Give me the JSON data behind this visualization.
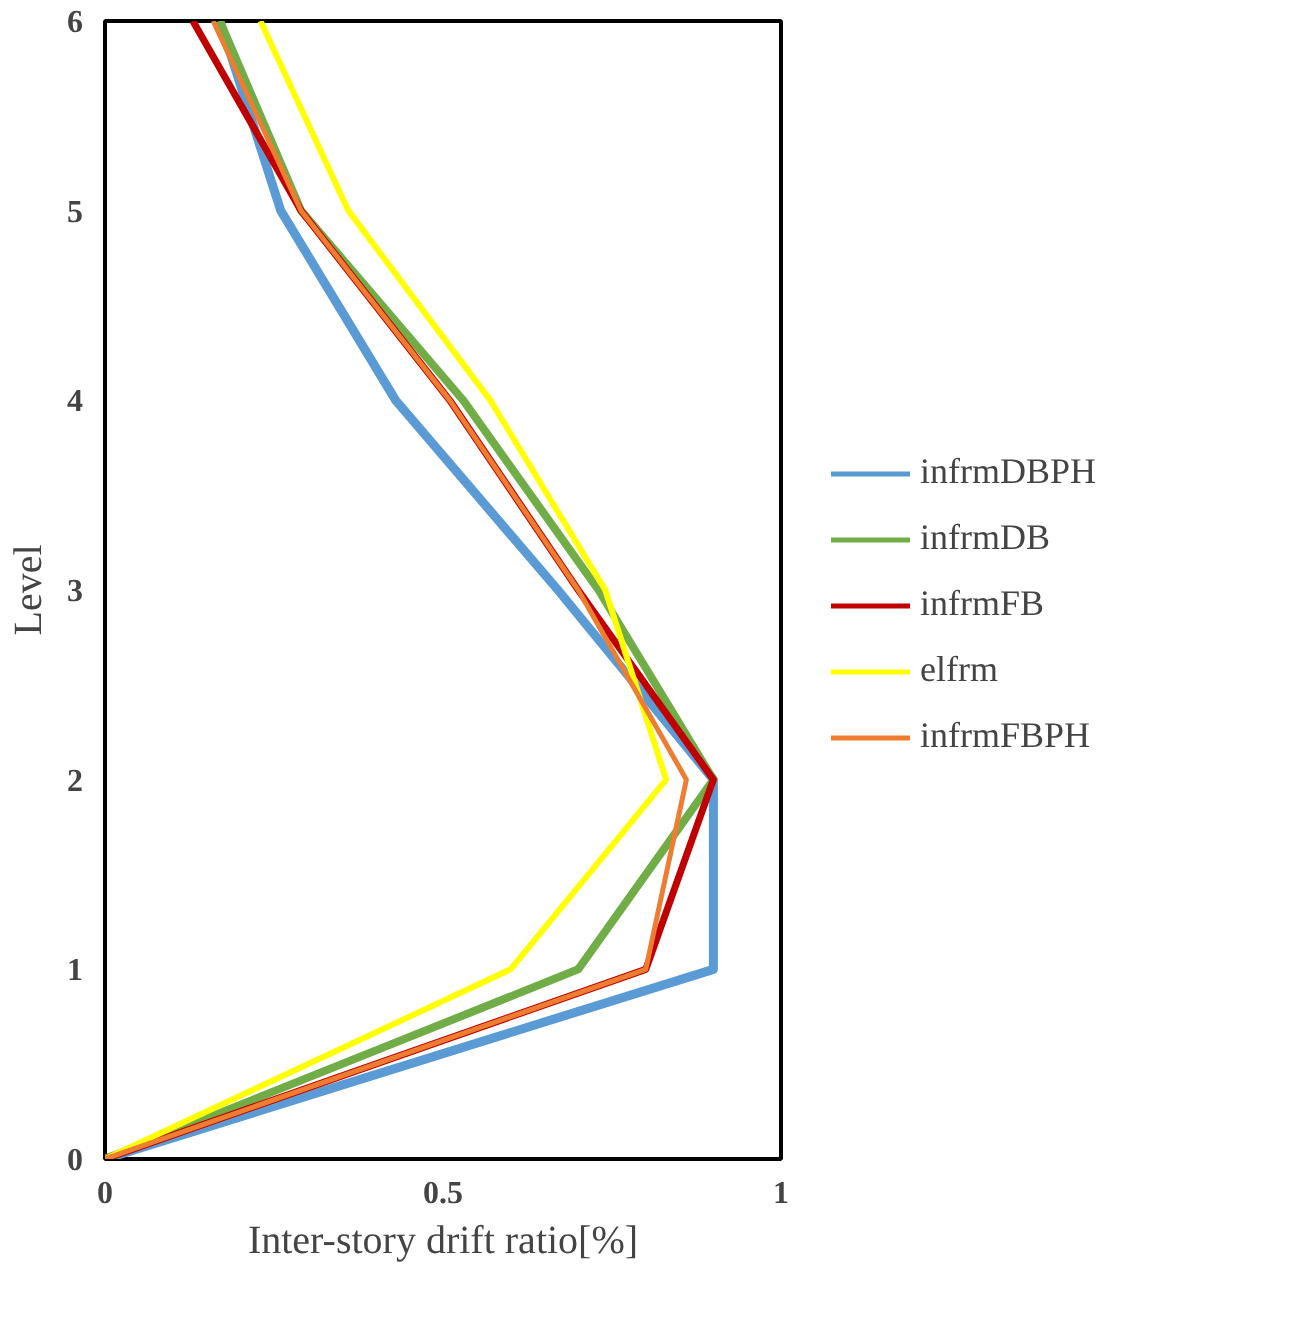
{
  "chart_data": {
    "type": "line",
    "xlabel": "Inter-story drift ratio[%]",
    "ylabel": "Level",
    "xlim": [
      0,
      1
    ],
    "xticks": [
      0,
      0.5,
      1
    ],
    "ylim": [
      0,
      6
    ],
    "yticks": [
      0,
      1,
      2,
      3,
      4,
      5,
      6
    ],
    "grid": false,
    "legend": "right",
    "marker": "none",
    "line_style": "solid",
    "series": [
      {
        "name": "infrmDBPH",
        "color": "#5b9bd5",
        "x": [
          0,
          0.9,
          0.9,
          0.67,
          0.43,
          0.26,
          0.17
        ],
        "values": [
          0,
          1,
          2,
          3,
          4,
          5,
          6
        ]
      },
      {
        "name": "infrmDB",
        "color": "#70ad47",
        "x": [
          0,
          0.7,
          0.9,
          0.73,
          0.53,
          0.29,
          0.17
        ],
        "values": [
          0,
          1,
          2,
          3,
          4,
          5,
          6
        ]
      },
      {
        "name": "infrmFB",
        "color": "#c00000",
        "x": [
          0,
          0.8,
          0.9,
          0.7,
          0.51,
          0.29,
          0.13
        ],
        "values": [
          0,
          1,
          2,
          3,
          4,
          5,
          6
        ]
      },
      {
        "name": "elfrm",
        "color": "#ffff00",
        "x": [
          0,
          0.6,
          0.83,
          0.74,
          0.57,
          0.36,
          0.23
        ],
        "values": [
          0,
          1,
          2,
          3,
          4,
          5,
          6
        ]
      },
      {
        "name": "infrmFBPH",
        "color": "#ed7d31",
        "x": [
          0,
          0.8,
          0.86,
          0.7,
          0.51,
          0.29,
          0.16
        ],
        "values": [
          0,
          1,
          2,
          3,
          4,
          5,
          6
        ]
      }
    ]
  }
}
